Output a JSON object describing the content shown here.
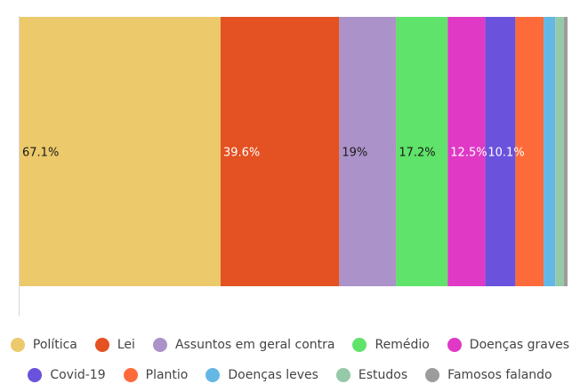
{
  "chart_data": {
    "type": "bar",
    "orientation": "stacked-horizontal",
    "title": "",
    "xlabel": "",
    "ylabel": "",
    "grid": false,
    "legend_position": "bottom",
    "series": [
      {
        "name": "Política",
        "value": 67.1,
        "label": "67.1%",
        "color": "#ECC96A",
        "label_color": "#1a1a1a"
      },
      {
        "name": "Lei",
        "value": 39.6,
        "label": "39.6%",
        "color": "#E45122",
        "label_color": "#ffffff"
      },
      {
        "name": "Assuntos em geral contra",
        "value": 19,
        "label": "19%",
        "color": "#AB92C9",
        "label_color": "#1a1a1a"
      },
      {
        "name": "Remédio",
        "value": 17.2,
        "label": "17.2%",
        "color": "#5FE36A",
        "label_color": "#1a1a1a"
      },
      {
        "name": "Doenças graves",
        "value": 12.5,
        "label": "12.5%",
        "color": "#E039C6",
        "label_color": "#ffffff"
      },
      {
        "name": "Covid-19",
        "value": 10.1,
        "label": "10.1%",
        "color": "#6B52DC",
        "label_color": "#ffffff"
      },
      {
        "name": "Plantio",
        "value": 9.4,
        "label": "",
        "color": "#FE6B3B",
        "label_color": "#ffffff"
      },
      {
        "name": "Doenças leves",
        "value": 3.9,
        "label": "",
        "color": "#63B8E6",
        "label_color": "#ffffff"
      },
      {
        "name": "Estudos",
        "value": 2.9,
        "label": "",
        "color": "#95C9A8",
        "label_color": "#ffffff"
      },
      {
        "name": "Famosos falando",
        "value": 1.2,
        "label": "",
        "color": "#9C9C9C",
        "label_color": "#ffffff"
      }
    ]
  }
}
